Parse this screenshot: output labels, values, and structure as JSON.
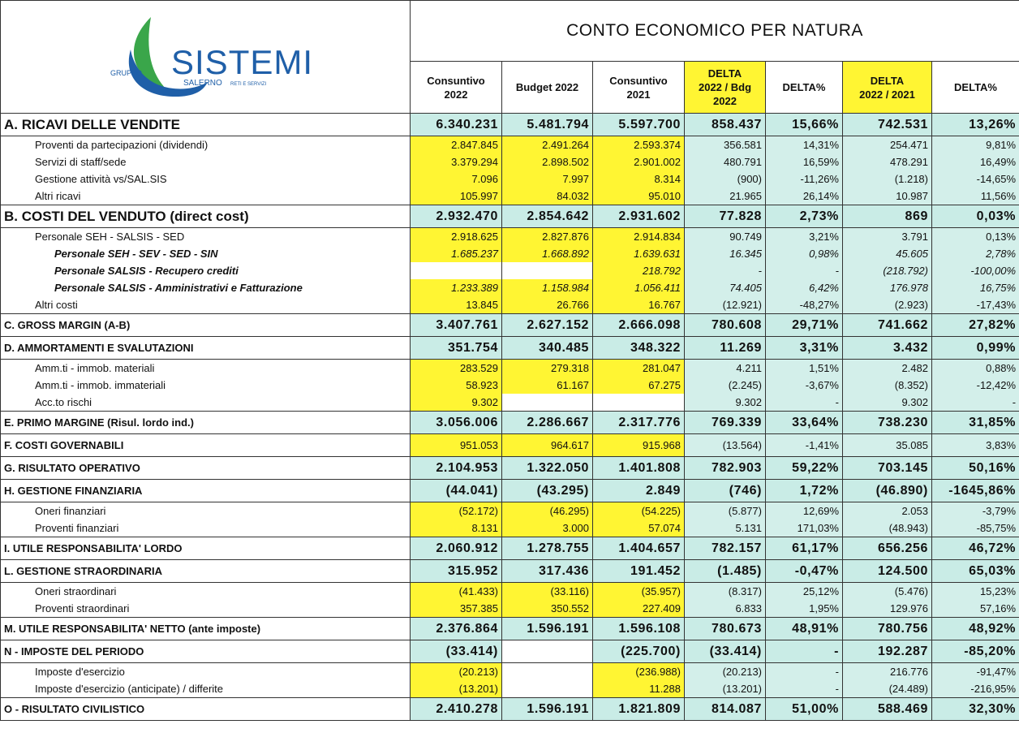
{
  "logo": {
    "group": "GRUPPO",
    "name": "SISTEMI",
    "city": "SALERNO",
    "tagline": "RETI E SERVIZI"
  },
  "title": "CONTO ECONOMICO PER NATURA",
  "columns": [
    {
      "label": "Consuntivo\n2022",
      "highlight": false
    },
    {
      "label": "Budget 2022",
      "highlight": false
    },
    {
      "label": "Consuntivo\n2021",
      "highlight": false
    },
    {
      "label": "DELTA\n2022 / Bdg\n2022",
      "highlight": true
    },
    {
      "label": "DELTA%",
      "highlight": false
    },
    {
      "label": "DELTA\n2022 / 2021",
      "highlight": true
    },
    {
      "label": "DELTA%",
      "highlight": false
    }
  ],
  "rows": [
    {
      "style": "major",
      "label": "A. RICAVI DELLE VENDITE",
      "values": [
        "6.340.231",
        "5.481.794",
        "5.597.700",
        "858.437",
        "15,66%",
        "742.531",
        "13,26%"
      ]
    },
    {
      "style": "detail",
      "label": "Proventi da partecipazioni (dividendi)",
      "values": [
        "2.847.845",
        "2.491.264",
        "2.593.374",
        "356.581",
        "14,31%",
        "254.471",
        "9,81%"
      ]
    },
    {
      "style": "detail",
      "label": "Servizi di staff/sede",
      "values": [
        "3.379.294",
        "2.898.502",
        "2.901.002",
        "480.791",
        "16,59%",
        "478.291",
        "16,49%"
      ]
    },
    {
      "style": "detail",
      "label": "Gestione attività  vs/SAL.SIS",
      "values": [
        "7.096",
        "7.997",
        "8.314",
        "(900)",
        "-11,26%",
        "(1.218)",
        "-14,65%"
      ]
    },
    {
      "style": "detail",
      "label": "Altri ricavi",
      "values": [
        "105.997",
        "84.032",
        "95.010",
        "21.965",
        "26,14%",
        "10.987",
        "11,56%"
      ]
    },
    {
      "style": "major",
      "label": "B. COSTI DEL VENDUTO (direct cost)",
      "values": [
        "2.932.470",
        "2.854.642",
        "2.931.602",
        "77.828",
        "2,73%",
        "869",
        "0,03%"
      ]
    },
    {
      "style": "detail",
      "label": "Personale SEH - SALSIS - SED",
      "values": [
        "2.918.625",
        "2.827.876",
        "2.914.834",
        "90.749",
        "3,21%",
        "3.791",
        "0,13%"
      ]
    },
    {
      "style": "subdetail",
      "label": "Personale SEH - SEV - SED - SIN",
      "values": [
        "1.685.237",
        "1.668.892",
        "1.639.631",
        "16.345",
        "0,98%",
        "45.605",
        "2,78%"
      ]
    },
    {
      "style": "subdetail",
      "label": "Personale SALSIS - Recupero crediti",
      "values": [
        null,
        null,
        "218.792",
        "-",
        "-",
        "(218.792)",
        "-100,00%"
      ]
    },
    {
      "style": "subdetail",
      "label": "Personale SALSIS - Amministrativi e Fatturazione",
      "values": [
        "1.233.389",
        "1.158.984",
        "1.056.411",
        "74.405",
        "6,42%",
        "176.978",
        "16,75%"
      ]
    },
    {
      "style": "detail",
      "label": "Altri costi",
      "values": [
        "13.845",
        "26.766",
        "16.767",
        "(12.921)",
        "-48,27%",
        "(2.923)",
        "-17,43%"
      ]
    },
    {
      "style": "section",
      "label": "C. GROSS MARGIN  (A-B)",
      "values": [
        "3.407.761",
        "2.627.152",
        "2.666.098",
        "780.608",
        "29,71%",
        "741.662",
        "27,82%"
      ]
    },
    {
      "style": "section",
      "label": "D. AMMORTAMENTI E SVALUTAZIONI",
      "values": [
        "351.754",
        "340.485",
        "348.322",
        "11.269",
        "3,31%",
        "3.432",
        "0,99%"
      ]
    },
    {
      "style": "detail",
      "label": "Amm.ti - immob. materiali",
      "values": [
        "283.529",
        "279.318",
        "281.047",
        "4.211",
        "1,51%",
        "2.482",
        "0,88%"
      ]
    },
    {
      "style": "detail",
      "label": "Amm.ti - immob. immateriali",
      "values": [
        "58.923",
        "61.167",
        "67.275",
        "(2.245)",
        "-3,67%",
        "(8.352)",
        "-12,42%"
      ]
    },
    {
      "style": "detail",
      "label": "Acc.to rischi",
      "values": [
        "9.302",
        null,
        null,
        "9.302",
        "-",
        "9.302",
        "-"
      ]
    },
    {
      "style": "section",
      "label": "E. PRIMO MARGINE (Risul. lordo ind.)",
      "values": [
        "3.056.006",
        "2.286.667",
        "2.317.776",
        "769.339",
        "33,64%",
        "738.230",
        "31,85%"
      ]
    },
    {
      "style": "flat",
      "label": "F. COSTI GOVERNABILI",
      "values": [
        "951.053",
        "964.617",
        "915.968",
        "(13.564)",
        "-1,41%",
        "35.085",
        "3,83%"
      ]
    },
    {
      "style": "section",
      "label": "G. RISULTATO OPERATIVO",
      "values": [
        "2.104.953",
        "1.322.050",
        "1.401.808",
        "782.903",
        "59,22%",
        "703.145",
        "50,16%"
      ]
    },
    {
      "style": "section",
      "label": "H. GESTIONE FINANZIARIA",
      "values": [
        "(44.041)",
        "(43.295)",
        "2.849",
        "(746)",
        "1,72%",
        "(46.890)",
        "-1645,86%"
      ]
    },
    {
      "style": "detail",
      "label": "Oneri finanziari",
      "values": [
        "(52.172)",
        "(46.295)",
        "(54.225)",
        "(5.877)",
        "12,69%",
        "2.053",
        "-3,79%"
      ]
    },
    {
      "style": "detail",
      "label": "Proventi finanziari",
      "values": [
        "8.131",
        "3.000",
        "57.074",
        "5.131",
        "171,03%",
        "(48.943)",
        "-85,75%"
      ]
    },
    {
      "style": "section",
      "label": "I. UTILE RESPONSABILITA' LORDO",
      "values": [
        "2.060.912",
        "1.278.755",
        "1.404.657",
        "782.157",
        "61,17%",
        "656.256",
        "46,72%"
      ]
    },
    {
      "style": "section",
      "label": "L. GESTIONE STRAORDINARIA",
      "values": [
        "315.952",
        "317.436",
        "191.452",
        "(1.485)",
        "-0,47%",
        "124.500",
        "65,03%"
      ]
    },
    {
      "style": "detail",
      "label": "Oneri straordinari",
      "values": [
        "(41.433)",
        "(33.116)",
        "(35.957)",
        "(8.317)",
        "25,12%",
        "(5.476)",
        "15,23%"
      ]
    },
    {
      "style": "detail",
      "label": "Proventi straordinari",
      "values": [
        "357.385",
        "350.552",
        "227.409",
        "6.833",
        "1,95%",
        "129.976",
        "57,16%"
      ]
    },
    {
      "style": "section",
      "label": "M. UTILE RESPONSABILITA'  NETTO (ante imposte)",
      "values": [
        "2.376.864",
        "1.596.191",
        "1.596.108",
        "780.673",
        "48,91%",
        "780.756",
        "48,92%"
      ]
    },
    {
      "style": "section",
      "label": "N - IMPOSTE DEL PERIODO",
      "values": [
        "(33.414)",
        null,
        "(225.700)",
        "(33.414)",
        "-",
        "192.287",
        "-85,20%"
      ]
    },
    {
      "style": "detail",
      "label": "Imposte d'esercizio",
      "values": [
        "(20.213)",
        null,
        "(236.988)",
        "(20.213)",
        "-",
        "216.776",
        "-91,47%"
      ]
    },
    {
      "style": "detail",
      "label": "Imposte d'esercizio (anticipate) / differite",
      "values": [
        "(13.201)",
        null,
        "11.288",
        "(13.201)",
        "-",
        "(24.489)",
        "-216,95%"
      ]
    },
    {
      "style": "section",
      "label": "O - RISULTATO CIVILISTICO",
      "values": [
        "2.410.278",
        "1.596.191",
        "1.821.809",
        "814.087",
        "51,00%",
        "588.469",
        "32,30%"
      ]
    }
  ]
}
